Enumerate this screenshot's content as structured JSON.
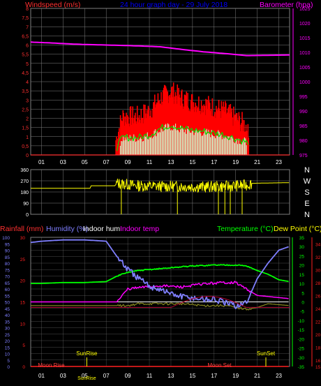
{
  "colors": {
    "background": "#000000",
    "grid": "#7f7f7f",
    "wind": "#ff3030",
    "gust": "#ff0000",
    "wind_dark": "#cc0000",
    "baro": "#ff00ff",
    "baro_axis": "#ff00ff",
    "dir": "#ffff00",
    "dir_axis": "#ffffff",
    "rain": "#ff2020",
    "humidity": "#7f7fff",
    "indoor_hum": "#ffffff",
    "indoor_temp": "#ff00ff",
    "temperature": "#00ff00",
    "dewpoint": "#ffff00",
    "title_blue": "#0000ff",
    "green_trace": "#00e000",
    "white_trace": "#d0ffd0",
    "olive": "#8a8a20",
    "darkred": "#b00030",
    "sun_text": "#ffff00",
    "moon_text": "#ff4040"
  },
  "header": {
    "left": "Windspeed (m/s)",
    "center": "24 hour graph day - 29 July 2018",
    "right": "Barometer (hpa)"
  },
  "chart_data": [
    {
      "type": "line",
      "panel": "wind-baro",
      "x_ticks": [
        "01",
        "03",
        "05",
        "07",
        "09",
        "11",
        "13",
        "15",
        "17",
        "19",
        "21",
        "23"
      ],
      "left_axis": {
        "label": "Windspeed (m/s)",
        "ylim": [
          0,
          8
        ],
        "ticks": [
          "0",
          "0,5",
          "1",
          "1,5",
          "2",
          "2,5",
          "3",
          "3,5",
          "4",
          "4,5",
          "5",
          "5,5",
          "6",
          "6,5",
          "7",
          "7,5",
          "8"
        ]
      },
      "right_axis": {
        "label": "Barometer (hpa)",
        "ylim": [
          975,
          1025
        ],
        "ticks": [
          "975",
          "980",
          "985",
          "990",
          "995",
          "1000",
          "1005",
          "1010",
          "1015",
          "1020",
          "1025"
        ]
      },
      "series": [
        {
          "name": "Barometer (hpa)",
          "x": [
            0,
            2,
            4,
            6,
            8,
            10,
            12,
            14,
            16,
            18,
            20,
            22,
            24
          ],
          "values": [
            1013.5,
            1013.2,
            1012.8,
            1012.6,
            1012.4,
            1012.2,
            1011.9,
            1011.0,
            1010.2,
            1009.6,
            1008.9,
            1009.0,
            1009.1
          ]
        },
        {
          "name": "Windspeed (m/s)",
          "x": [
            0,
            7.8,
            8.5,
            9,
            10,
            11,
            12,
            13,
            14,
            15,
            16,
            17,
            18,
            19,
            20,
            20.3,
            24
          ],
          "values": [
            0,
            0,
            1.5,
            1.5,
            1.5,
            1.8,
            2.5,
            2.9,
            2.5,
            2.3,
            2.2,
            2.0,
            1.8,
            1.4,
            1.0,
            0,
            0
          ]
        }
      ]
    },
    {
      "type": "line",
      "panel": "wind-direction",
      "right_axis": {
        "ticks": [
          "N",
          "W",
          "S",
          "E",
          "N"
        ]
      },
      "left_axis": {
        "ylim": [
          0,
          360
        ],
        "ticks": [
          "0",
          "90",
          "180",
          "270",
          "360"
        ]
      },
      "series": [
        {
          "name": "Wind direction",
          "x": [
            0,
            5.5,
            5.6,
            7.8,
            8,
            10,
            12,
            14,
            16,
            18,
            20,
            20.5,
            24
          ],
          "values": [
            210,
            210,
            230,
            230,
            250,
            230,
            225,
            225,
            220,
            225,
            235,
            250,
            255
          ]
        }
      ]
    },
    {
      "type": "line",
      "panel": "rain-hum-temp",
      "header": {
        "rainfall": "Rainfall (mm)",
        "humidity": "Humidity (%)",
        "indoor_hum": "Indoor hum",
        "indoor_temp": "Indoor temp",
        "temperature": "Temperature (°C)",
        "dewpoint": "Dew Point (°C)"
      },
      "humidity_axis": {
        "ylim": [
          0,
          100
        ],
        "ticks": [
          "0",
          "5",
          "10",
          "15",
          "20",
          "25",
          "30",
          "35",
          "40",
          "45",
          "50",
          "55",
          "60",
          "65",
          "70",
          "75",
          "80",
          "85",
          "90",
          "95",
          "100"
        ]
      },
      "rain_axis": {
        "ylim": [
          0,
          30
        ],
        "ticks": [
          "0",
          "5",
          "10",
          "15",
          "20",
          "25",
          "30"
        ]
      },
      "temp_axis": {
        "ylim": [
          -35,
          35
        ],
        "ticks": [
          "-35",
          "-30",
          "-25",
          "-20",
          "-15",
          "-10",
          "-5",
          "0",
          "5",
          "10",
          "15",
          "20",
          "25",
          "30",
          "35"
        ]
      },
      "indoor_axis": {
        "ylim": [
          15,
          35
        ],
        "ticks": [
          "15",
          "16",
          "18",
          "20",
          "22",
          "24",
          "26",
          "28",
          "30",
          "32",
          "34"
        ]
      },
      "series": [
        {
          "name": "Humidity (%)",
          "x": [
            0,
            1,
            3,
            5,
            7,
            8,
            9,
            10,
            11,
            12,
            13,
            14,
            15,
            16,
            17,
            18,
            19,
            20,
            21,
            22,
            23,
            24
          ],
          "values": [
            96,
            97,
            98,
            98,
            97,
            85,
            75,
            68,
            62,
            60,
            56,
            54,
            53,
            52,
            52,
            49,
            47,
            49,
            68,
            80,
            90,
            93
          ]
        },
        {
          "name": "Temperature (°C)",
          "x": [
            0,
            1,
            3,
            5,
            7,
            8,
            9,
            10,
            11,
            12,
            13,
            14,
            15,
            16,
            17,
            18,
            19,
            20,
            21,
            22,
            23,
            24
          ],
          "values": [
            10,
            10,
            10.5,
            10.5,
            11,
            14,
            16,
            17,
            17.5,
            18,
            18.5,
            19,
            19.5,
            19.7,
            20,
            20,
            20,
            19.5,
            17,
            15,
            12,
            11
          ]
        },
        {
          "name": "Indoor temp",
          "x": [
            0,
            8,
            9,
            10,
            12,
            14,
            16,
            18,
            19,
            20,
            21,
            24
          ],
          "values": [
            25,
            25,
            27,
            27.2,
            27.5,
            27.3,
            27.8,
            28,
            28,
            27,
            26,
            25.5
          ]
        },
        {
          "name": "Dew Point (°C)",
          "x": [
            0,
            8,
            9,
            10,
            12,
            14,
            16,
            18,
            19,
            20,
            21,
            22,
            24
          ],
          "values": [
            -2,
            -2,
            -2,
            -1,
            -1,
            -1,
            -2,
            -2,
            -3,
            -4,
            -3,
            -1,
            -2
          ]
        },
        {
          "name": "Indoor hum",
          "x": [
            0,
            24
          ],
          "values": [
            50,
            50
          ]
        },
        {
          "name": "Rainfall (mm)",
          "x": [
            0,
            24
          ],
          "values": [
            0,
            0
          ]
        }
      ],
      "annotations": {
        "sunrise": "SunRise",
        "sunset": "SunSet",
        "moonrise": "Moon Rise",
        "moonset": "Moon Set",
        "sunrise_hour": 5.2,
        "sunset_hour": 21.8,
        "moonrise_hour": 1.0,
        "moonset_hour": 17.5
      },
      "x_ticks": [
        "01",
        "03",
        "05",
        "07",
        "09",
        "11",
        "13",
        "15",
        "17",
        "19",
        "21",
        "23"
      ]
    }
  ]
}
